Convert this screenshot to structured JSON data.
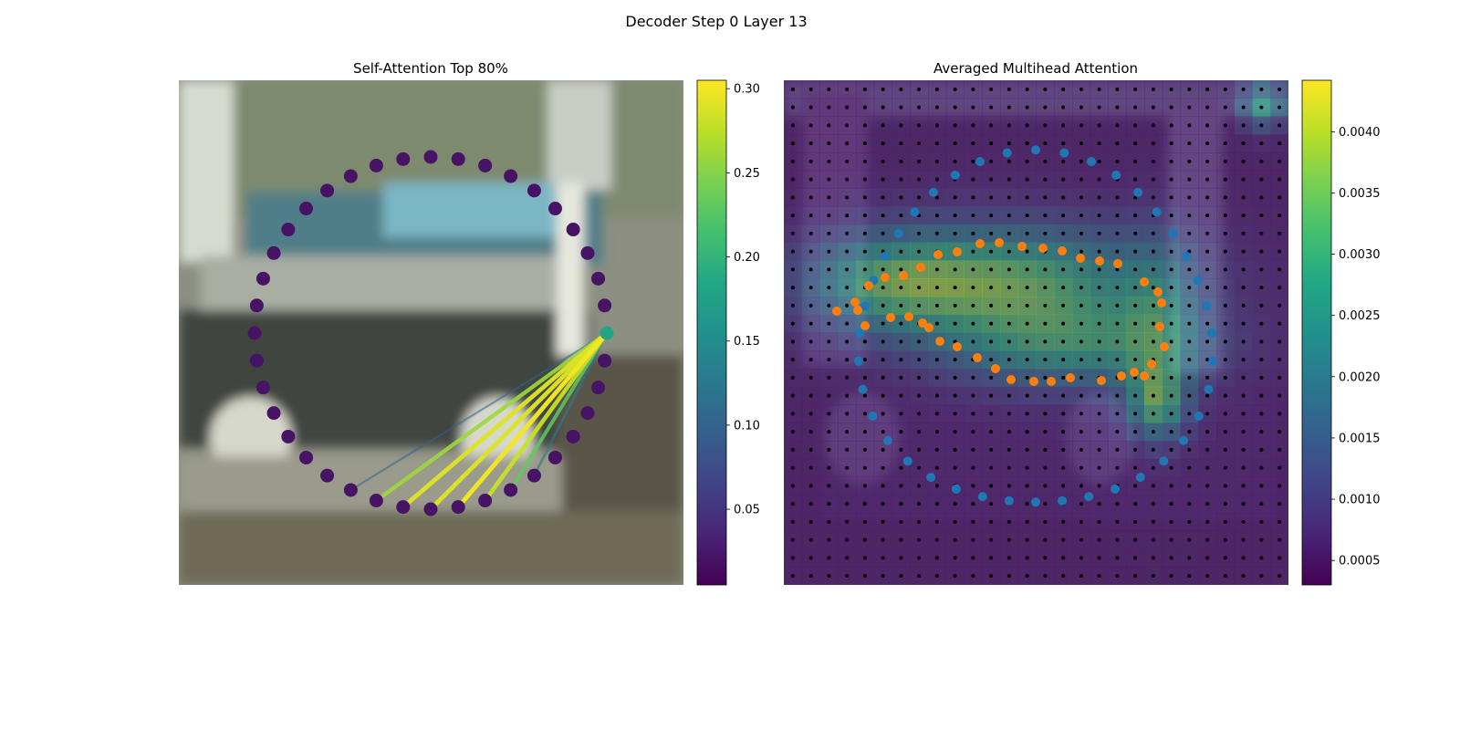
{
  "suptitle": "Decoder Step 0 Layer 13",
  "chart_data": [
    {
      "type": "scatter",
      "title": "Self-Attention Top 80%",
      "description_kind": "image with circular ring of 40 points and attention lines",
      "query_point_index": 10,
      "num_points": 40,
      "attention_links": [
        {
          "from": 10,
          "to": 20,
          "weight": 0.29
        },
        {
          "from": 10,
          "to": 19,
          "weight": 0.3
        },
        {
          "from": 10,
          "to": 21,
          "weight": 0.29
        },
        {
          "from": 10,
          "to": 18,
          "weight": 0.28
        },
        {
          "from": 10,
          "to": 22,
          "weight": 0.26
        },
        {
          "from": 10,
          "to": 17,
          "weight": 0.23
        },
        {
          "from": 10,
          "to": 23,
          "weight": 0.1
        },
        {
          "from": 10,
          "to": 16,
          "weight": 0.13
        }
      ],
      "point_weights": {
        "query": 0.18,
        "others": 0.02
      },
      "colorbar": {
        "cmap": "viridis",
        "vmin": 0.005,
        "vmax": 0.305,
        "ticks": [
          "0.05",
          "0.10",
          "0.15",
          "0.20",
          "0.25",
          "0.30"
        ],
        "tick_values": [
          0.05,
          0.1,
          0.15,
          0.2,
          0.25,
          0.3
        ]
      }
    },
    {
      "type": "heatmap",
      "title": "Averaged Multihead Attention",
      "grid_size": 28,
      "series": [
        {
          "name": "",
          "kind": "reference points (black dots)",
          "color": "#000000"
        },
        {
          "name": "",
          "kind": "ring points",
          "color": "#1f77b4",
          "count": 40
        },
        {
          "name": "",
          "kind": "predicted contour points",
          "color": "#ff7f0e",
          "count": 40
        }
      ],
      "colorbar": {
        "cmap": "viridis",
        "vmin": 0.0003,
        "vmax": 0.00442,
        "ticks": [
          "0.0005",
          "0.0010",
          "0.0015",
          "0.0020",
          "0.0025",
          "0.0030",
          "0.0035",
          "0.0040"
        ],
        "tick_values": [
          0.0005,
          0.001,
          0.0015,
          0.002,
          0.0025,
          0.003,
          0.0035,
          0.004
        ]
      }
    }
  ]
}
